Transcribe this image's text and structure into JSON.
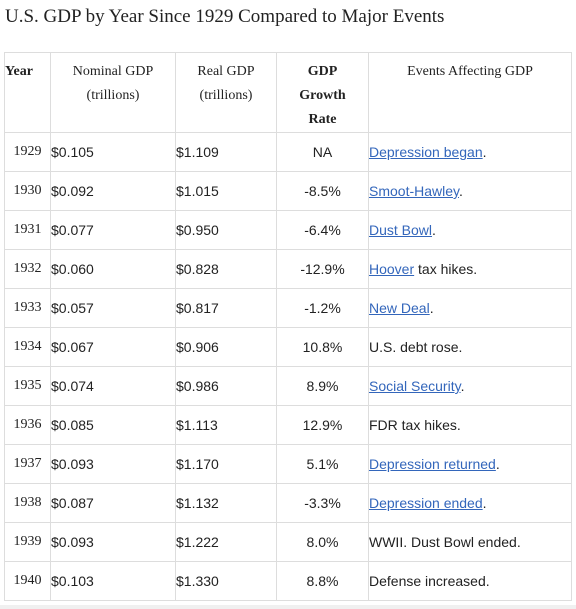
{
  "page": {
    "title": "U.S. GDP by Year Since 1929 Compared to Major Events"
  },
  "table": {
    "headers": {
      "year": "Year",
      "nominal_line1": "Nominal GDP",
      "nominal_line2": "(trillions)",
      "real_line1": "Real GDP",
      "real_line2": "(trillions)",
      "growth_line1": "GDP",
      "growth_line2": "Growth",
      "growth_line3": "Rate",
      "events": "Events Affecting GDP"
    },
    "rows": [
      {
        "year": "1929",
        "nominal": "$0.105",
        "real": "$1.109",
        "growth": "NA",
        "event_link": "Depression began",
        "event_text": "."
      },
      {
        "year": "1930",
        "nominal": "$0.092",
        "real": "$1.015",
        "growth": "-8.5%",
        "event_link": "Smoot-Hawley",
        "event_text": "."
      },
      {
        "year": "1931",
        "nominal": "$0.077",
        "real": "$0.950",
        "growth": "-6.4%",
        "event_link": "Dust Bowl",
        "event_text": "."
      },
      {
        "year": "1932",
        "nominal": "$0.060",
        "real": "$0.828",
        "growth": "-12.9%",
        "event_link": "Hoover",
        "event_text": " tax hikes."
      },
      {
        "year": "1933",
        "nominal": "$0.057",
        "real": "$0.817",
        "growth": "-1.2%",
        "event_link": "New Deal",
        "event_text": "."
      },
      {
        "year": "1934",
        "nominal": "$0.067",
        "real": "$0.906",
        "growth": "10.8%",
        "event_link": "",
        "event_text": "U.S. debt rose."
      },
      {
        "year": "1935",
        "nominal": "$0.074",
        "real": "$0.986",
        "growth": "8.9%",
        "event_link": "Social Security",
        "event_text": "."
      },
      {
        "year": "1936",
        "nominal": "$0.085",
        "real": "$1.113",
        "growth": "12.9%",
        "event_link": "",
        "event_text": "FDR tax hikes."
      },
      {
        "year": "1937",
        "nominal": "$0.093",
        "real": "$1.170",
        "growth": "5.1%",
        "event_link": "Depression returned",
        "event_text": "."
      },
      {
        "year": "1938",
        "nominal": "$0.087",
        "real": "$1.132",
        "growth": "-3.3%",
        "event_link": "Depression ended",
        "event_text": "."
      },
      {
        "year": "1939",
        "nominal": "$0.093",
        "real": "$1.222",
        "growth": "8.0%",
        "event_link": "",
        "event_text": "WWII. Dust Bowl ended."
      },
      {
        "year": "1940",
        "nominal": "$0.103",
        "real": "$1.330",
        "growth": "8.8%",
        "event_link": "",
        "event_text": "Defense increased."
      }
    ]
  },
  "colors": {
    "link": "#3366bb",
    "border": "#dddddd",
    "text": "#222222"
  }
}
